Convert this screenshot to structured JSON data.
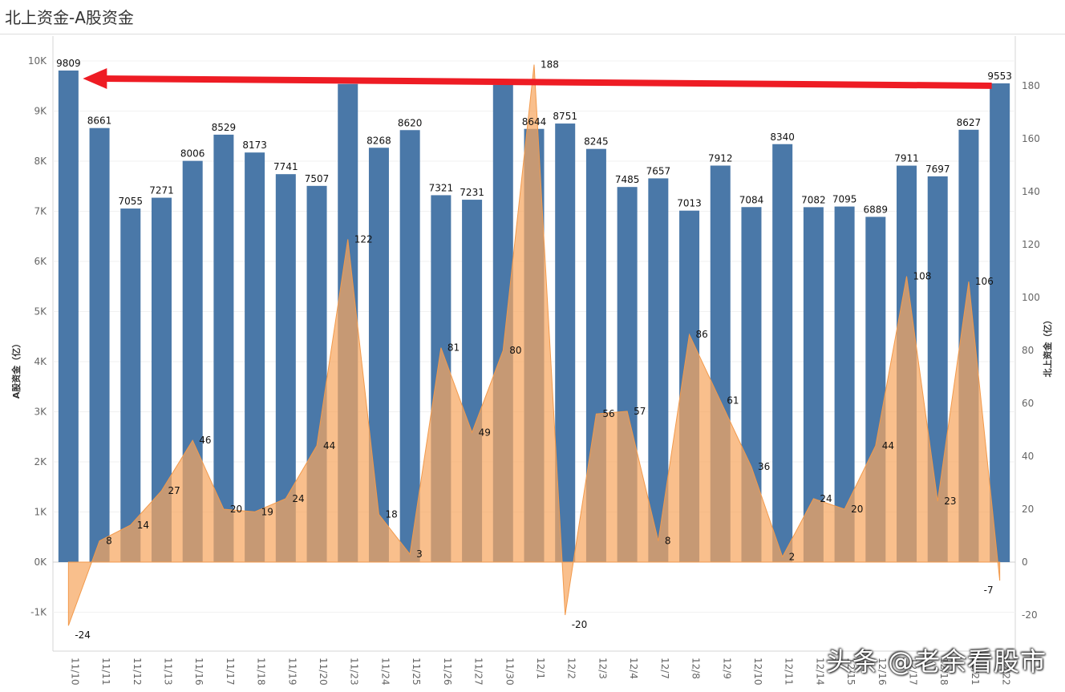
{
  "title": "北上资金-A股资金",
  "watermark": "头条 @老余看股市",
  "chart_data": {
    "type": "bar+area",
    "categories": [
      "11/10",
      "11/11",
      "11/12",
      "11/13",
      "11/16",
      "11/17",
      "11/18",
      "11/19",
      "11/20",
      "11/23",
      "11/24",
      "11/25",
      "11/26",
      "11/27",
      "11/30",
      "12/1",
      "12/2",
      "12/3",
      "12/4",
      "12/7",
      "12/8",
      "12/9",
      "12/10",
      "12/11",
      "12/14",
      "12/15",
      "12/16",
      "12/17",
      "12/18",
      "12/21",
      "12/22"
    ],
    "bar_series": {
      "values": [
        9809,
        8661,
        7055,
        7271,
        8006,
        8529,
        8173,
        7741,
        7507,
        9540,
        8268,
        8620,
        7321,
        7231,
        9520,
        8644,
        8751,
        8245,
        7485,
        7657,
        7013,
        7912,
        7084,
        8340,
        7082,
        7095,
        6889,
        7911,
        7697,
        8627,
        9553
      ],
      "labels": [
        "9809",
        "8661",
        "7055",
        "7271",
        "8006",
        "8529",
        "8173",
        "7741",
        "7507",
        "",
        "8268",
        "8620",
        "7321",
        "7231",
        "",
        "8644",
        "8751",
        "8245",
        "7485",
        "7657",
        "7013",
        "7912",
        "7084",
        "8340",
        "7082",
        "7095",
        "6889",
        "7911",
        "7697",
        "8627",
        "9553"
      ],
      "color": "#4a78a8"
    },
    "area_series": {
      "values": [
        -24,
        8,
        14,
        27,
        46,
        20,
        19,
        24,
        44,
        122,
        18,
        3,
        81,
        49,
        80,
        188,
        -20,
        56,
        57,
        8,
        86,
        61,
        36,
        2,
        24,
        20,
        44,
        108,
        23,
        106,
        -7
      ],
      "color": "#f7a660"
    },
    "y_left": {
      "label": "A股资金（亿）",
      "ylim": [
        -1800,
        10200
      ],
      "ticks": [
        -1000,
        0,
        1000,
        2000,
        3000,
        4000,
        5000,
        6000,
        7000,
        8000,
        9000,
        10000
      ],
      "tick_labels": [
        "-1K",
        "0K",
        "1K",
        "2K",
        "3K",
        "4K",
        "5K",
        "6K",
        "7K",
        "8K",
        "9K",
        "10K"
      ]
    },
    "y_right": {
      "label": "北上资金（亿）",
      "ylim": [
        -34,
        190
      ],
      "ticks": [
        -20,
        0,
        20,
        40,
        60,
        80,
        100,
        120,
        140,
        160,
        180
      ],
      "tick_labels": [
        "-20",
        "0",
        "20",
        "40",
        "60",
        "80",
        "100",
        "120",
        "140",
        "160",
        "180"
      ]
    },
    "annotation": {
      "type": "red-arrow",
      "from_value": 9553,
      "to_value": 9809,
      "color": "#ee1c24"
    },
    "grid": true
  }
}
